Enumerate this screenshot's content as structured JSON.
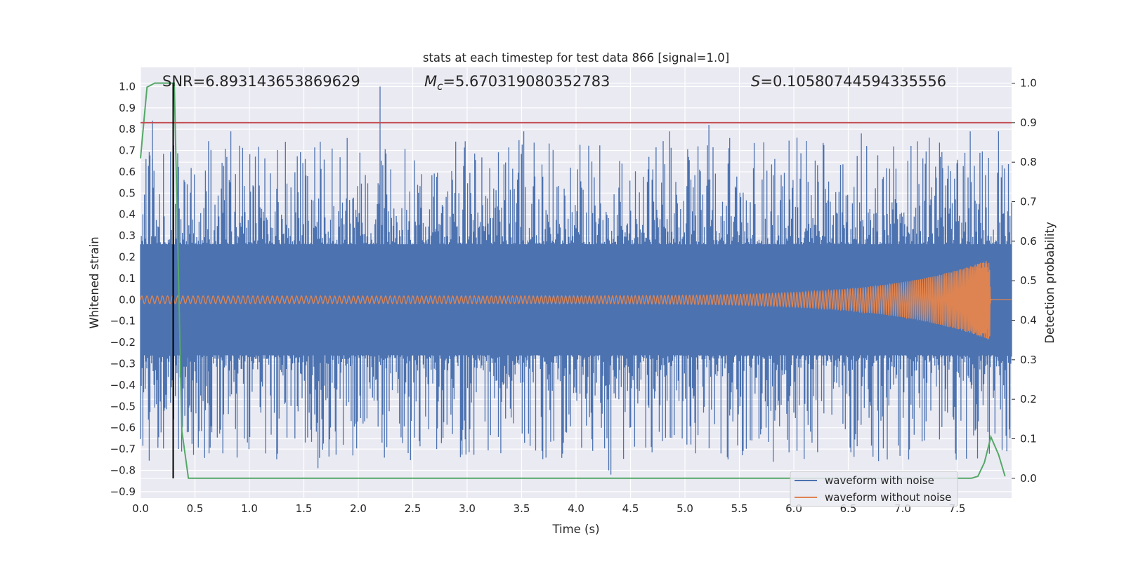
{
  "chart_data": {
    "type": "line",
    "title": "stats at each timestep for test data 866 [signal=1.0]",
    "xlabel": "Time (s)",
    "ylabel_left": "Whitened strain",
    "ylabel_right": "Detection probability",
    "xlim": [
      0.0,
      8.0
    ],
    "ylim_left": [
      -0.93,
      1.09
    ],
    "ylim_right": [
      -0.05,
      1.04
    ],
    "grid": true,
    "x_ticks": [
      "0.0",
      "0.5",
      "1.0",
      "1.5",
      "2.0",
      "2.5",
      "3.0",
      "3.5",
      "4.0",
      "4.5",
      "5.0",
      "5.5",
      "6.0",
      "6.5",
      "7.0",
      "7.5"
    ],
    "y_ticks_left": [
      "1.0",
      "0.9",
      "0.8",
      "0.7",
      "0.6",
      "0.5",
      "0.4",
      "0.3",
      "0.2",
      "0.1",
      "0.0",
      "−0.1",
      "−0.2",
      "−0.3",
      "−0.4",
      "−0.5",
      "−0.6",
      "−0.7",
      "−0.8",
      "−0.9"
    ],
    "y_ticks_right": [
      "1.0",
      "0.9",
      "0.8",
      "0.7",
      "0.6",
      "0.5",
      "0.4",
      "0.3",
      "0.2",
      "0.1",
      "0.0"
    ],
    "annotations": {
      "snr": "SNR=6.893143653869629",
      "mc_symbol": "M",
      "mc_sub": "c",
      "mc_value": "=5.670319080352783",
      "s_symbol": "S",
      "s_value": "=0.10580744594335556"
    },
    "threshold_right": 0.9,
    "detection_time": 0.3,
    "series": [
      {
        "name": "waveform with noise",
        "color": "#4c72b0",
        "axis": "left",
        "envelope_core": 0.26,
        "peaks": [
          [
            0.05,
            0.66
          ],
          [
            0.11,
            0.84
          ],
          [
            0.16,
            -0.59
          ],
          [
            0.3,
            1.0
          ],
          [
            0.44,
            -0.62
          ],
          [
            0.63,
            -0.72
          ],
          [
            0.83,
            0.79
          ],
          [
            1.63,
            -0.79
          ],
          [
            1.95,
            -0.73
          ],
          [
            2.2,
            1.0
          ],
          [
            2.72,
            -0.7
          ],
          [
            3.52,
            0.79
          ],
          [
            4.3,
            -0.8
          ],
          [
            4.32,
            -0.82
          ],
          [
            4.86,
            0.79
          ],
          [
            5.22,
            0.82
          ],
          [
            6.62,
            0.78
          ],
          [
            7.62,
            0.79
          ],
          [
            7.88,
            0.79
          ]
        ]
      },
      {
        "name": "waveform without noise",
        "color": "#dd8452",
        "axis": "left",
        "chirp_peak_time": 7.8,
        "chirp_peak_amplitude": 0.19
      },
      {
        "name": "detection probability",
        "color": "#55a868",
        "axis": "right",
        "x": [
          0.0,
          0.06,
          0.13,
          0.19,
          0.25,
          0.31,
          0.38,
          0.44,
          7.5,
          7.63,
          7.69,
          7.75,
          7.81,
          7.88,
          7.94
        ],
        "y": [
          0.81,
          0.99,
          1.0,
          1.0,
          1.0,
          1.0,
          0.12,
          0.0,
          0.0,
          0.0,
          0.005,
          0.04,
          0.105,
          0.06,
          0.005
        ]
      }
    ],
    "legend": {
      "placement": "bottom-right",
      "entries": [
        "waveform with noise",
        "waveform without noise"
      ]
    }
  }
}
